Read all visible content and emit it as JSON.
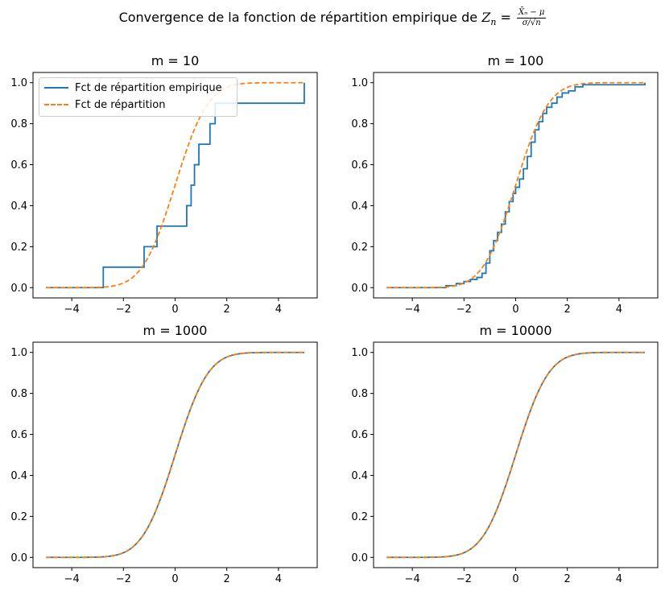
{
  "figure": {
    "title_prefix": "Convergence de la fonction de répartition empirique de ",
    "z_symbol": "Z",
    "z_sub": "n",
    "eq": " = ",
    "frac_num": "X̄ₙ − μ",
    "frac_den": "σ/√n"
  },
  "colors": {
    "empirical": "#1f77b4",
    "theoretical": "#ff7f0e",
    "axes": "#000000"
  },
  "legend": {
    "empirical_label": "Fct de répartition empirique",
    "theoretical_label": "Fct de répartition"
  },
  "chart_data": [
    {
      "type": "line",
      "title": "m = 10",
      "xlim": [
        -5.5,
        5.5
      ],
      "ylim": [
        -0.05,
        1.05
      ],
      "xticks": [
        -4,
        -2,
        0,
        2,
        4
      ],
      "yticks": [
        0.0,
        0.2,
        0.4,
        0.6,
        0.8,
        1.0
      ],
      "xtick_labels": [
        "−4",
        "−2",
        "0",
        "2",
        "4"
      ],
      "ytick_labels": [
        "0.0",
        "0.2",
        "0.4",
        "0.6",
        "0.8",
        "1.0"
      ],
      "legend_position": "upper-left",
      "series": [
        {
          "name": "Fct de répartition empirique",
          "style": "step",
          "x": [
            -5,
            -2.78,
            -1.2,
            -0.7,
            0.45,
            0.62,
            0.75,
            0.92,
            1.35,
            1.55,
            5
          ],
          "y": [
            0,
            0.1,
            0.2,
            0.3,
            0.4,
            0.5,
            0.6,
            0.7,
            0.8,
            0.9,
            1.0
          ]
        },
        {
          "name": "Fct de répartition",
          "style": "dashed",
          "function": "normal_cdf",
          "x_range": [
            -5,
            5
          ]
        }
      ]
    },
    {
      "type": "line",
      "title": "m = 100",
      "xlim": [
        -5.5,
        5.5
      ],
      "ylim": [
        -0.05,
        1.05
      ],
      "xticks": [
        -4,
        -2,
        0,
        2,
        4
      ],
      "yticks": [
        0.0,
        0.2,
        0.4,
        0.6,
        0.8,
        1.0
      ],
      "xtick_labels": [
        "−4",
        "−2",
        "0",
        "2",
        "4"
      ],
      "ytick_labels": [
        "0.0",
        "0.2",
        "0.4",
        "0.6",
        "0.8",
        "1.0"
      ],
      "series": [
        {
          "name": "Fct de répartition empirique",
          "style": "step",
          "x": [
            -5,
            -2.7,
            -2.3,
            -2.0,
            -1.75,
            -1.5,
            -1.3,
            -1.15,
            -1.0,
            -0.85,
            -0.7,
            -0.55,
            -0.4,
            -0.25,
            -0.1,
            0.0,
            0.15,
            0.3,
            0.45,
            0.6,
            0.75,
            0.9,
            1.05,
            1.2,
            1.4,
            1.6,
            1.8,
            2.05,
            2.3,
            2.6,
            5
          ],
          "y": [
            0,
            0.01,
            0.02,
            0.03,
            0.04,
            0.05,
            0.07,
            0.12,
            0.18,
            0.23,
            0.27,
            0.31,
            0.37,
            0.42,
            0.46,
            0.49,
            0.53,
            0.58,
            0.64,
            0.71,
            0.77,
            0.81,
            0.85,
            0.88,
            0.9,
            0.93,
            0.95,
            0.96,
            0.98,
            0.99,
            1.0
          ]
        },
        {
          "name": "Fct de répartition",
          "style": "dashed",
          "function": "normal_cdf",
          "x_range": [
            -5,
            5
          ]
        }
      ]
    },
    {
      "type": "line",
      "title": "m = 1000",
      "xlim": [
        -5.5,
        5.5
      ],
      "ylim": [
        -0.05,
        1.05
      ],
      "xticks": [
        -4,
        -2,
        0,
        2,
        4
      ],
      "yticks": [
        0.0,
        0.2,
        0.4,
        0.6,
        0.8,
        1.0
      ],
      "xtick_labels": [
        "−4",
        "−2",
        "0",
        "2",
        "4"
      ],
      "ytick_labels": [
        "0.0",
        "0.2",
        "0.4",
        "0.6",
        "0.8",
        "1.0"
      ],
      "series": [
        {
          "name": "Fct de répartition empirique",
          "style": "smooth",
          "function": "normal_cdf",
          "x_range": [
            -5,
            5
          ]
        },
        {
          "name": "Fct de répartition",
          "style": "dashed",
          "function": "normal_cdf",
          "x_range": [
            -5,
            5
          ]
        }
      ]
    },
    {
      "type": "line",
      "title": "m = 10000",
      "xlim": [
        -5.5,
        5.5
      ],
      "ylim": [
        -0.05,
        1.05
      ],
      "xticks": [
        -4,
        -2,
        0,
        2,
        4
      ],
      "yticks": [
        0.0,
        0.2,
        0.4,
        0.6,
        0.8,
        1.0
      ],
      "xtick_labels": [
        "−4",
        "−2",
        "0",
        "2",
        "4"
      ],
      "ytick_labels": [
        "0.0",
        "0.2",
        "0.4",
        "0.6",
        "0.8",
        "1.0"
      ],
      "series": [
        {
          "name": "Fct de répartition empirique",
          "style": "smooth",
          "function": "normal_cdf",
          "x_range": [
            -5,
            5
          ]
        },
        {
          "name": "Fct de répartition",
          "style": "dashed",
          "function": "normal_cdf",
          "x_range": [
            -5,
            5
          ]
        }
      ]
    }
  ]
}
